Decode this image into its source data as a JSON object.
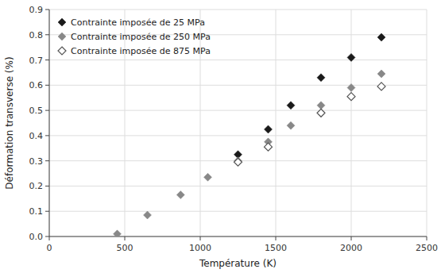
{
  "chart_data": {
    "type": "scatter",
    "xlabel": "Température (K)",
    "ylabel": "Déformation transverse (%)",
    "series": [
      {
        "name": "Contrainte imposée de 25 MPa",
        "color": "#1a1a1a",
        "marker": "diamond",
        "x": [
          1250,
          1450,
          1600,
          1800,
          2000,
          2200
        ],
        "values": [
          0.325,
          0.425,
          0.52,
          0.63,
          0.71,
          0.79
        ]
      },
      {
        "name": "Contrainte imposée de 250 MPa",
        "color": "#888888",
        "marker": "diamond",
        "x": [
          450,
          650,
          870,
          1050,
          1250,
          1450,
          1600,
          1800,
          2000,
          2200
        ],
        "values": [
          0.01,
          0.085,
          0.165,
          0.235,
          0.3,
          0.375,
          0.44,
          0.52,
          0.59,
          0.645
        ]
      },
      {
        "name": "Contrainte imposée de 875 MPa",
        "color": "#555555",
        "marker": "diamond-open",
        "x": [
          1250,
          1450,
          1800,
          2000,
          2200
        ],
        "values": [
          0.295,
          0.355,
          0.49,
          0.555,
          0.595
        ]
      }
    ],
    "xlim": [
      0,
      2500
    ],
    "ylim": [
      0,
      0.9
    ],
    "xticks": [
      0,
      500,
      1000,
      1500,
      2000,
      2500
    ],
    "yticks": [
      {
        "value": 0,
        "label": "0.0"
      },
      0.1,
      0.2,
      0.3,
      0.4,
      0.5,
      0.6,
      0.7,
      0.8,
      0.9
    ],
    "grid": true,
    "legend": "upper-left"
  }
}
